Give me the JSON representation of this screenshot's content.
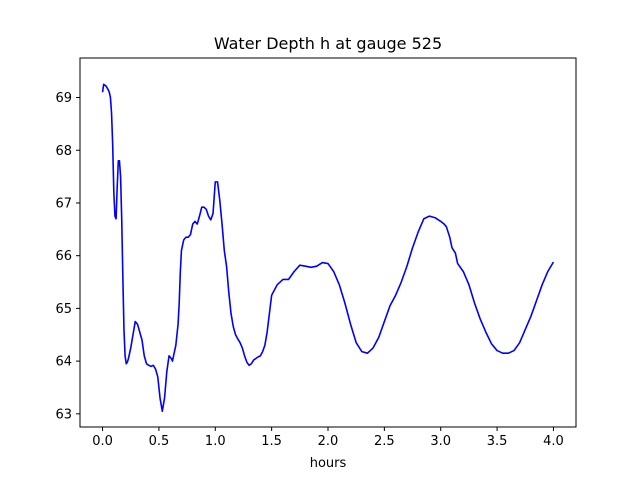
{
  "chart_data": {
    "type": "line",
    "title": "Water Depth h at gauge 525",
    "xlabel": "hours",
    "ylabel": "",
    "xlim": [
      -0.2,
      4.2
    ],
    "ylim": [
      62.75,
      69.75
    ],
    "xticks": [
      0.0,
      0.5,
      1.0,
      1.5,
      2.0,
      2.5,
      3.0,
      3.5,
      4.0
    ],
    "xtick_labels": [
      "0.0",
      "0.5",
      "1.0",
      "1.5",
      "2.0",
      "2.5",
      "3.0",
      "3.5",
      "4.0"
    ],
    "yticks": [
      63,
      64,
      65,
      66,
      67,
      68,
      69
    ],
    "ytick_labels": [
      "63",
      "64",
      "65",
      "66",
      "67",
      "68",
      "69"
    ],
    "grid": false,
    "legend": "none",
    "series": [
      {
        "color": "#0000ff",
        "x": [
          0.0,
          0.01,
          0.03,
          0.05,
          0.06,
          0.07,
          0.08,
          0.09,
          0.1,
          0.11,
          0.12,
          0.13,
          0.14,
          0.15,
          0.16,
          0.17,
          0.18,
          0.19,
          0.2,
          0.21,
          0.22,
          0.23,
          0.25,
          0.27,
          0.29,
          0.31,
          0.33,
          0.35,
          0.37,
          0.39,
          0.41,
          0.43,
          0.45,
          0.47,
          0.49,
          0.51,
          0.53,
          0.55,
          0.57,
          0.59,
          0.61,
          0.62,
          0.63,
          0.65,
          0.67,
          0.68,
          0.69,
          0.7,
          0.72,
          0.74,
          0.76,
          0.78,
          0.8,
          0.82,
          0.84,
          0.86,
          0.88,
          0.9,
          0.92,
          0.94,
          0.96,
          0.98,
          1.0,
          1.02,
          1.04,
          1.06,
          1.08,
          1.1,
          1.12,
          1.14,
          1.16,
          1.18,
          1.2,
          1.22,
          1.24,
          1.26,
          1.28,
          1.3,
          1.32,
          1.34,
          1.36,
          1.38,
          1.4,
          1.42,
          1.44,
          1.46,
          1.48,
          1.5,
          1.55,
          1.6,
          1.65,
          1.7,
          1.75,
          1.8,
          1.85,
          1.9,
          1.95,
          2.0,
          2.05,
          2.1,
          2.15,
          2.2,
          2.25,
          2.3,
          2.35,
          2.4,
          2.45,
          2.5,
          2.55,
          2.6,
          2.65,
          2.7,
          2.75,
          2.8,
          2.85,
          2.9,
          2.95,
          3.0,
          3.03,
          3.05,
          3.08,
          3.1,
          3.13,
          3.15,
          3.2,
          3.25,
          3.3,
          3.35,
          3.4,
          3.45,
          3.5,
          3.55,
          3.6,
          3.65,
          3.7,
          3.75,
          3.8,
          3.85,
          3.9,
          3.95,
          4.0
        ],
        "y": [
          69.1,
          69.25,
          69.22,
          69.15,
          69.1,
          69.0,
          68.7,
          68.1,
          67.2,
          66.75,
          66.7,
          67.3,
          67.8,
          67.8,
          67.5,
          66.7,
          65.6,
          64.6,
          64.1,
          63.95,
          63.98,
          64.05,
          64.25,
          64.5,
          64.75,
          64.7,
          64.55,
          64.4,
          64.1,
          63.95,
          63.92,
          63.9,
          63.92,
          63.85,
          63.7,
          63.3,
          63.05,
          63.3,
          63.8,
          64.1,
          64.05,
          64.0,
          64.1,
          64.3,
          64.7,
          65.1,
          65.7,
          66.1,
          66.3,
          66.35,
          66.35,
          66.4,
          66.6,
          66.65,
          66.6,
          66.75,
          66.92,
          66.92,
          66.88,
          66.75,
          66.68,
          66.8,
          67.4,
          67.4,
          67.05,
          66.6,
          66.1,
          65.8,
          65.3,
          64.9,
          64.65,
          64.5,
          64.42,
          64.35,
          64.25,
          64.1,
          63.98,
          63.92,
          63.95,
          64.02,
          64.05,
          64.08,
          64.1,
          64.18,
          64.3,
          64.55,
          64.9,
          65.25,
          65.45,
          65.55,
          65.55,
          65.7,
          65.82,
          65.8,
          65.78,
          65.8,
          65.87,
          65.85,
          65.7,
          65.45,
          65.1,
          64.7,
          64.35,
          64.18,
          64.15,
          64.25,
          64.45,
          64.75,
          65.05,
          65.25,
          65.5,
          65.8,
          66.15,
          66.45,
          66.7,
          66.75,
          66.72,
          66.65,
          66.6,
          66.55,
          66.35,
          66.15,
          66.05,
          65.85,
          65.7,
          65.45,
          65.1,
          64.8,
          64.55,
          64.33,
          64.2,
          64.15,
          64.15,
          64.2,
          64.35,
          64.6,
          64.85,
          65.15,
          65.45,
          65.7,
          65.88
        ]
      }
    ]
  }
}
